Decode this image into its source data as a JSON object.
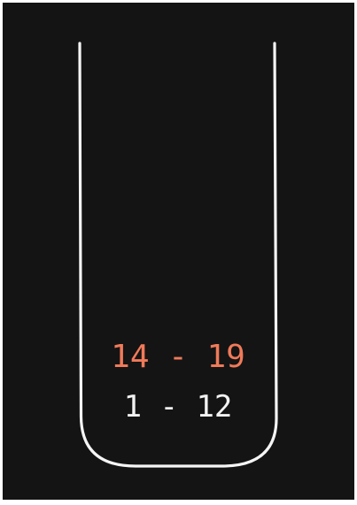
{
  "scores": {
    "top": "14 - 19",
    "bottom": "1 - 12"
  },
  "colors": {
    "background": "#141414",
    "outline": "#f5f5f5",
    "highlight": "#f07a5a",
    "text": "#f2f2f2"
  }
}
